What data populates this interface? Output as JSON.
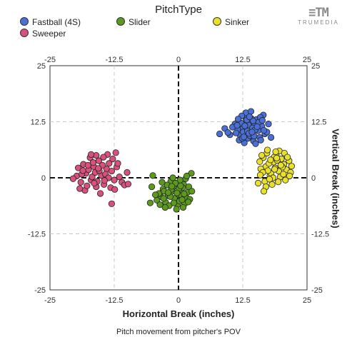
{
  "legend": {
    "title": "PitchType",
    "items": [
      {
        "label": "Fastball (4S)",
        "color": "#4a6fd6"
      },
      {
        "label": "Slider",
        "color": "#5c9a1e"
      },
      {
        "label": "Sinker",
        "color": "#e8e02a"
      },
      {
        "label": "Sweeper",
        "color": "#d9507d"
      }
    ]
  },
  "logo": {
    "mark": "≡TM",
    "text": "TRUMEDIA"
  },
  "chart_data": {
    "type": "scatter",
    "xlabel": "Horizontal Break (inches)",
    "ylabel": "Vertical Break (inches)",
    "caption": "Pitch movement from pitcher's POV",
    "xlim": [
      -25,
      25
    ],
    "ylim": [
      -25,
      25
    ],
    "ticks": [
      -25,
      -12.5,
      0,
      12.5,
      25
    ],
    "tick_labels": [
      "-25",
      "-12.5",
      "0",
      "12.5",
      "25"
    ],
    "grid": true,
    "series": [
      {
        "name": "Fastball (4S)",
        "color": "#4a6fd6",
        "points": [
          [
            12.5,
            11.0
          ],
          [
            13.2,
            12.5
          ],
          [
            14.0,
            10.0
          ],
          [
            12.0,
            9.5
          ],
          [
            13.5,
            8.8
          ],
          [
            14.8,
            12.0
          ],
          [
            15.5,
            10.5
          ],
          [
            13.0,
            13.5
          ],
          [
            11.5,
            10.8
          ],
          [
            12.8,
            7.8
          ],
          [
            14.2,
            13.2
          ],
          [
            15.8,
            9.0
          ],
          [
            13.6,
            11.8
          ],
          [
            12.2,
            12.2
          ],
          [
            14.6,
            8.2
          ],
          [
            16.2,
            11.5
          ],
          [
            11.0,
            12.0
          ],
          [
            13.9,
            9.4
          ],
          [
            15.2,
            13.0
          ],
          [
            12.6,
            10.2
          ],
          [
            14.4,
            11.1
          ],
          [
            16.8,
            9.8
          ],
          [
            13.1,
            14.5
          ],
          [
            10.5,
            11.3
          ],
          [
            15.0,
            7.6
          ],
          [
            11.8,
            8.4
          ],
          [
            14.9,
            10.7
          ],
          [
            13.4,
            10.4
          ],
          [
            12.3,
            13.8
          ],
          [
            15.6,
            12.4
          ],
          [
            17.5,
            12.0
          ],
          [
            9.0,
            11.0
          ],
          [
            8.0,
            9.8
          ],
          [
            17.2,
            10.2
          ],
          [
            18.0,
            9.0
          ],
          [
            16.5,
            14.0
          ],
          [
            10.0,
            9.6
          ],
          [
            14.1,
            14.8
          ],
          [
            16.0,
            8.4
          ],
          [
            12.9,
            11.6
          ],
          [
            13.7,
            9.9
          ],
          [
            11.2,
            10.0
          ],
          [
            15.3,
            11.4
          ],
          [
            14.5,
            12.7
          ],
          [
            12.4,
            8.8
          ],
          [
            13.3,
            12.9
          ],
          [
            16.6,
            10.6
          ],
          [
            11.6,
            13.1
          ],
          [
            14.7,
            9.3
          ],
          [
            13.8,
            13.6
          ],
          [
            15.9,
            13.5
          ],
          [
            12.7,
            9.1
          ],
          [
            14.3,
            10.2
          ],
          [
            16.3,
            12.8
          ],
          [
            11.4,
            11.7
          ],
          [
            9.6,
            10.1
          ]
        ]
      },
      {
        "name": "Slider",
        "color": "#5c9a1e",
        "points": [
          [
            -1.0,
            -2.0
          ],
          [
            0.5,
            -3.0
          ],
          [
            -2.0,
            -4.0
          ],
          [
            1.0,
            -1.5
          ],
          [
            -0.5,
            -5.0
          ],
          [
            -3.0,
            -2.5
          ],
          [
            0.0,
            -3.8
          ],
          [
            1.5,
            -4.5
          ],
          [
            -1.5,
            -0.8
          ],
          [
            -2.5,
            -5.5
          ],
          [
            0.8,
            -2.2
          ],
          [
            -0.2,
            -6.0
          ],
          [
            1.8,
            -3.2
          ],
          [
            -3.5,
            -4.2
          ],
          [
            -1.2,
            -3.0
          ],
          [
            0.3,
            -0.5
          ],
          [
            -2.2,
            -1.6
          ],
          [
            1.2,
            -5.8
          ],
          [
            -0.8,
            -4.6
          ],
          [
            2.0,
            -2.0
          ],
          [
            -3.8,
            -3.5
          ],
          [
            0.6,
            -4.0
          ],
          [
            -1.8,
            -6.2
          ],
          [
            1.4,
            -0.2
          ],
          [
            -0.6,
            -1.2
          ],
          [
            -2.8,
            -3.0
          ],
          [
            0.2,
            -5.2
          ],
          [
            -1.4,
            -2.6
          ],
          [
            2.2,
            -4.8
          ],
          [
            -4.2,
            -5.0
          ],
          [
            -5.2,
            -2.0
          ],
          [
            -5.5,
            -5.6
          ],
          [
            -5.0,
            0.5
          ],
          [
            2.5,
            1.0
          ],
          [
            1.6,
            0.4
          ],
          [
            -0.4,
            -7.0
          ],
          [
            -2.6,
            -6.6
          ],
          [
            0.9,
            -6.6
          ],
          [
            -1.6,
            -4.2
          ],
          [
            0.1,
            -2.4
          ],
          [
            -3.2,
            -1.0
          ],
          [
            1.1,
            -3.6
          ],
          [
            -0.9,
            -5.6
          ],
          [
            -2.0,
            -3.3
          ],
          [
            0.4,
            -1.8
          ],
          [
            -4.5,
            -3.8
          ],
          [
            2.6,
            -3.0
          ],
          [
            -1.1,
            0.0
          ],
          [
            0.7,
            -4.9
          ],
          [
            -2.9,
            -4.6
          ],
          [
            1.9,
            -5.4
          ],
          [
            -0.3,
            -3.4
          ],
          [
            -3.6,
            -6.0
          ],
          [
            -1.3,
            -1.9
          ]
        ]
      },
      {
        "name": "Sinker",
        "color": "#e8e02a",
        "points": [
          [
            17.0,
            2.5
          ],
          [
            18.5,
            3.5
          ],
          [
            19.5,
            1.5
          ],
          [
            16.5,
            4.5
          ],
          [
            20.5,
            3.0
          ],
          [
            17.8,
            0.5
          ],
          [
            19.0,
            5.0
          ],
          [
            21.0,
            1.8
          ],
          [
            16.0,
            2.0
          ],
          [
            18.0,
            1.0
          ],
          [
            20.0,
            4.2
          ],
          [
            17.2,
            5.5
          ],
          [
            19.8,
            0.2
          ],
          [
            18.8,
            2.2
          ],
          [
            21.5,
            3.8
          ],
          [
            16.8,
            -0.8
          ],
          [
            20.8,
            -0.5
          ],
          [
            17.6,
            3.2
          ],
          [
            19.2,
            3.9
          ],
          [
            18.2,
            -1.5
          ],
          [
            15.8,
            3.6
          ],
          [
            20.2,
            2.4
          ],
          [
            21.8,
            1.2
          ],
          [
            17.0,
            -2.0
          ],
          [
            19.6,
            6.0
          ],
          [
            18.6,
            4.6
          ],
          [
            16.2,
            5.0
          ],
          [
            20.6,
            5.5
          ],
          [
            22.0,
            2.6
          ],
          [
            17.4,
            1.6
          ],
          [
            18.4,
            0.0
          ],
          [
            19.4,
            -0.9
          ],
          [
            15.5,
            -1.2
          ],
          [
            16.6,
            -3.0
          ],
          [
            18.9,
            5.8
          ],
          [
            21.2,
            4.6
          ],
          [
            17.9,
            4.0
          ],
          [
            19.9,
            2.8
          ],
          [
            16.4,
            1.2
          ],
          [
            20.4,
            0.8
          ],
          [
            17.7,
            -0.3
          ],
          [
            18.7,
            1.9
          ],
          [
            15.9,
            0.6
          ],
          [
            19.1,
            4.4
          ],
          [
            21.6,
            0.4
          ],
          [
            17.3,
            6.2
          ]
        ]
      },
      {
        "name": "Sweeper",
        "color": "#d9507d",
        "points": [
          [
            -18.0,
            1.0
          ],
          [
            -16.5,
            2.5
          ],
          [
            -15.0,
            0.5
          ],
          [
            -14.0,
            2.0
          ],
          [
            -19.0,
            -1.0
          ],
          [
            -17.0,
            -0.5
          ],
          [
            -13.0,
            1.5
          ],
          [
            -12.5,
            -0.5
          ],
          [
            -16.0,
            -2.0
          ],
          [
            -18.5,
            3.0
          ],
          [
            -15.5,
            3.8
          ],
          [
            -14.5,
            -1.5
          ],
          [
            -17.5,
            1.8
          ],
          [
            -13.5,
            3.2
          ],
          [
            -19.5,
            2.2
          ],
          [
            -16.8,
            0.2
          ],
          [
            -12.0,
            2.4
          ],
          [
            -15.2,
            -3.5
          ],
          [
            -18.2,
            -2.8
          ],
          [
            -14.2,
            0.8
          ],
          [
            -11.5,
            0.2
          ],
          [
            -17.2,
            4.5
          ],
          [
            -13.2,
            -2.2
          ],
          [
            -16.2,
            1.2
          ],
          [
            -19.8,
            0.4
          ],
          [
            -15.8,
            -0.8
          ],
          [
            -12.8,
            4.2
          ],
          [
            -14.8,
            2.8
          ],
          [
            -17.8,
            -1.8
          ],
          [
            -11.0,
            -1.0
          ],
          [
            -16.0,
            5.0
          ],
          [
            -13.8,
            5.2
          ],
          [
            -12.2,
            5.6
          ],
          [
            -17.0,
            5.2
          ],
          [
            -20.5,
            -0.2
          ],
          [
            -10.0,
            1.2
          ],
          [
            -10.5,
            -1.6
          ],
          [
            -9.8,
            -1.4
          ],
          [
            -18.8,
            0.8
          ],
          [
            -14.6,
            4.6
          ],
          [
            -15.4,
            1.6
          ],
          [
            -16.4,
            -1.2
          ],
          [
            -13.6,
            0.0
          ],
          [
            -12.4,
            -2.6
          ],
          [
            -18.6,
            1.6
          ],
          [
            -19.2,
            -2.4
          ],
          [
            -17.6,
            2.8
          ],
          [
            -14.4,
            -0.6
          ],
          [
            -13.0,
            -5.8
          ],
          [
            -11.8,
            3.2
          ],
          [
            -15.6,
            2.1
          ],
          [
            -16.6,
            3.4
          ]
        ]
      }
    ]
  }
}
